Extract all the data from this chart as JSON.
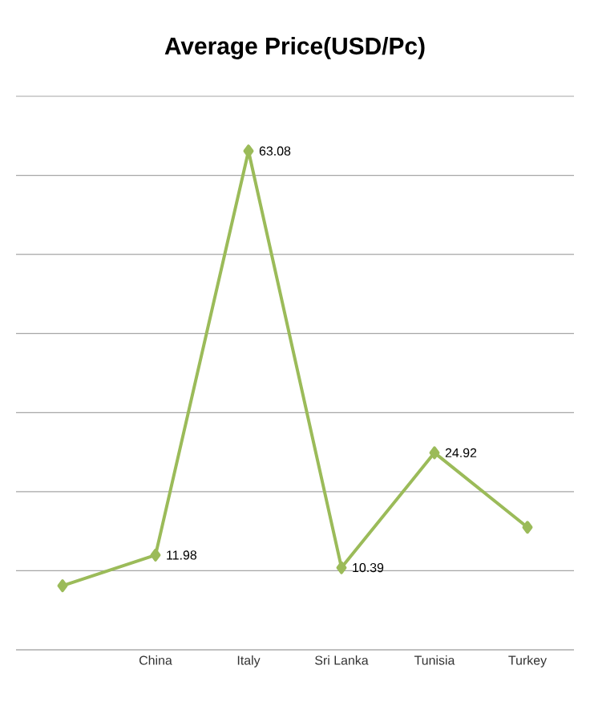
{
  "chart_data": {
    "type": "line",
    "title": "Average Price(USD/Pc)",
    "categories": [
      null,
      "China",
      "Italy",
      "Sri Lanka",
      "Tunisia",
      "Turkey"
    ],
    "series": [
      {
        "color": "#9bbb59",
        "values": [
          8.1,
          11.98,
          63.08,
          10.39,
          24.92,
          15.5
        ],
        "value_labels": [
          null,
          "11.98",
          "63.08",
          "10.39",
          "24.92",
          null
        ]
      }
    ],
    "ylim": [
      0,
      70
    ],
    "yticks": [
      {
        "value": 0,
        "label": null
      },
      {
        "value": 10,
        "label": null
      },
      {
        "value": 20,
        "label": null
      },
      {
        "value": 30,
        "label": null
      },
      {
        "value": 40,
        "label": null
      },
      {
        "value": 50,
        "label": null
      },
      {
        "value": 60,
        "label": null
      },
      {
        "value": 70,
        "label": null
      }
    ],
    "grid": "y",
    "tick_labels": "x",
    "marker": "diamond",
    "line_style": "solid"
  }
}
